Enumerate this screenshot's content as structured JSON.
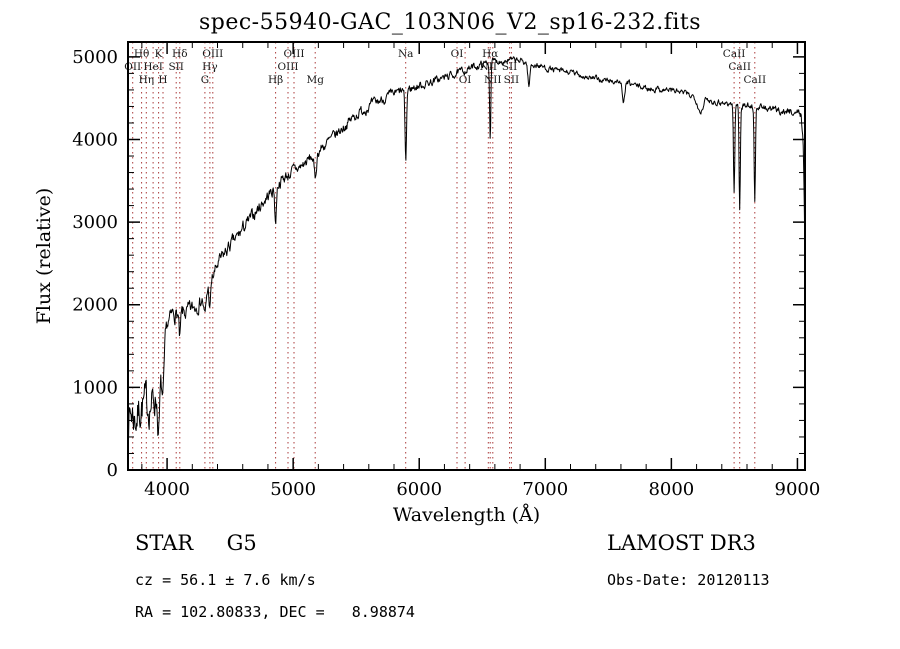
{
  "footer": {
    "class_line": "STAR     G5",
    "survey": "LAMOST DR3",
    "cz_line": "cz = 56.1 ± 7.6 km/s",
    "obs_date_line": "Obs-Date: 20120113",
    "radec_line": "RA = 102.80833, DEC =   8.98874"
  },
  "chart_data": {
    "type": "line",
    "title": "spec-55940-GAC_103N06_V2_sp16-232.fits",
    "xlabel": "Wavelength (Å)",
    "ylabel": "Flux (relative)",
    "xlim": [
      3690,
      9060
    ],
    "ylim": [
      0,
      5180
    ],
    "x_ticks": [
      4000,
      5000,
      6000,
      7000,
      8000,
      9000
    ],
    "y_ticks": [
      0,
      1000,
      2000,
      3000,
      4000,
      5000
    ],
    "x_minor_step": 200,
    "y_minor_step": 200,
    "grid": false,
    "series_color": "#000000",
    "line_marker_color": "#aa3a3a",
    "line_label_color": "#1a1a1a",
    "sample_step": 4,
    "random_seed": 7,
    "continuum": [
      [
        3690,
        650
      ],
      [
        3720,
        700
      ],
      [
        3750,
        620
      ],
      [
        3800,
        800
      ],
      [
        3850,
        780
      ],
      [
        3900,
        850
      ],
      [
        3950,
        1050
      ],
      [
        4000,
        1750
      ],
      [
        4050,
        1900
      ],
      [
        4100,
        1880
      ],
      [
        4150,
        1900
      ],
      [
        4200,
        1950
      ],
      [
        4250,
        2020
      ],
      [
        4300,
        2120
      ],
      [
        4350,
        2280
      ],
      [
        4400,
        2480
      ],
      [
        4450,
        2600
      ],
      [
        4500,
        2720
      ],
      [
        4550,
        2800
      ],
      [
        4600,
        2920
      ],
      [
        4650,
        3010
      ],
      [
        4700,
        3120
      ],
      [
        4750,
        3220
      ],
      [
        4800,
        3320
      ],
      [
        4850,
        3400
      ],
      [
        4900,
        3500
      ],
      [
        4950,
        3560
      ],
      [
        5000,
        3620
      ],
      [
        5050,
        3660
      ],
      [
        5100,
        3720
      ],
      [
        5150,
        3790
      ],
      [
        5200,
        3860
      ],
      [
        5300,
        4000
      ],
      [
        5400,
        4150
      ],
      [
        5500,
        4300
      ],
      [
        5600,
        4400
      ],
      [
        5700,
        4480
      ],
      [
        5800,
        4550
      ],
      [
        5900,
        4600
      ],
      [
        6000,
        4650
      ],
      [
        6100,
        4700
      ],
      [
        6200,
        4750
      ],
      [
        6300,
        4800
      ],
      [
        6400,
        4860
      ],
      [
        6500,
        4910
      ],
      [
        6600,
        4950
      ],
      [
        6700,
        4960
      ],
      [
        6800,
        4950
      ],
      [
        6900,
        4910
      ],
      [
        7000,
        4870
      ],
      [
        7100,
        4830
      ],
      [
        7200,
        4810
      ],
      [
        7300,
        4770
      ],
      [
        7400,
        4730
      ],
      [
        7500,
        4710
      ],
      [
        7600,
        4700
      ],
      [
        7700,
        4660
      ],
      [
        7800,
        4620
      ],
      [
        7900,
        4610
      ],
      [
        8000,
        4600
      ],
      [
        8100,
        4560
      ],
      [
        8200,
        4510
      ],
      [
        8300,
        4470
      ],
      [
        8400,
        4450
      ],
      [
        8500,
        4420
      ],
      [
        8600,
        4410
      ],
      [
        8700,
        4390
      ],
      [
        8800,
        4360
      ],
      [
        8900,
        4340
      ],
      [
        9000,
        4330
      ],
      [
        9030,
        4300
      ],
      [
        9045,
        4000
      ],
      [
        9055,
        3200
      ],
      [
        9060,
        2600
      ]
    ],
    "absorption_features": [
      {
        "center": 3933,
        "depth": 520,
        "sigma": 8
      },
      {
        "center": 3968,
        "depth": 470,
        "sigma": 8
      },
      {
        "center": 4101,
        "depth": 320,
        "sigma": 6
      },
      {
        "center": 4300,
        "depth": 260,
        "sigma": 9
      },
      {
        "center": 4340,
        "depth": 300,
        "sigma": 6
      },
      {
        "center": 4861,
        "depth": 420,
        "sigma": 6
      },
      {
        "center": 5175,
        "depth": 300,
        "sigma": 9
      },
      {
        "center": 5893,
        "depth": 850,
        "sigma": 6
      },
      {
        "center": 6563,
        "depth": 900,
        "sigma": 5
      },
      {
        "center": 6870,
        "depth": 280,
        "sigma": 8
      },
      {
        "center": 7620,
        "depth": 280,
        "sigma": 9
      },
      {
        "center": 8230,
        "depth": 160,
        "sigma": 18
      },
      {
        "center": 8498,
        "depth": 1050,
        "sigma": 5
      },
      {
        "center": 8542,
        "depth": 1250,
        "sigma": 5
      },
      {
        "center": 8662,
        "depth": 1150,
        "sigma": 5
      }
    ],
    "noise_profile": [
      [
        3690,
        320
      ],
      [
        3850,
        300
      ],
      [
        3950,
        220
      ],
      [
        4000,
        130
      ],
      [
        4300,
        110
      ],
      [
        4700,
        95
      ],
      [
        5200,
        85
      ],
      [
        5800,
        70
      ],
      [
        6300,
        55
      ],
      [
        7000,
        45
      ],
      [
        8000,
        45
      ],
      [
        8800,
        50
      ],
      [
        9060,
        60
      ]
    ],
    "spectral_lines": [
      {
        "label": "OII",
        "wavelength": 3727,
        "row": 2
      },
      {
        "label": "Hθ",
        "wavelength": 3798,
        "row": 1
      },
      {
        "label": "Hη",
        "wavelength": 3835,
        "row": 3
      },
      {
        "label": "HeI",
        "wavelength": 3889,
        "row": 2
      },
      {
        "label": "K",
        "wavelength": 3933,
        "row": 1
      },
      {
        "label": "H",
        "wavelength": 3968,
        "row": 3
      },
      {
        "label": "SII",
        "wavelength": 4072,
        "row": 2
      },
      {
        "label": "Hδ",
        "wavelength": 4101,
        "row": 1
      },
      {
        "label": "G",
        "wavelength": 4300,
        "row": 3
      },
      {
        "label": "Hγ",
        "wavelength": 4340,
        "row": 2
      },
      {
        "label": "OIII",
        "wavelength": 4363,
        "row": 1
      },
      {
        "label": "Hβ",
        "wavelength": 4861,
        "row": 3
      },
      {
        "label": "OIII",
        "wavelength": 4959,
        "row": 2
      },
      {
        "label": "OIII",
        "wavelength": 5007,
        "row": 1
      },
      {
        "label": "Mg",
        "wavelength": 5175,
        "row": 3
      },
      {
        "label": "Na",
        "wavelength": 5893,
        "row": 1
      },
      {
        "label": "OI",
        "wavelength": 6300,
        "row": 1
      },
      {
        "label": "OI",
        "wavelength": 6364,
        "row": 3
      },
      {
        "label": "NII",
        "wavelength": 6548,
        "row": 2
      },
      {
        "label": "Hα",
        "wavelength": 6563,
        "row": 1
      },
      {
        "label": "NII",
        "wavelength": 6584,
        "row": 3
      },
      {
        "label": "SII",
        "wavelength": 6717,
        "row": 2
      },
      {
        "label": "SII",
        "wavelength": 6731,
        "row": 3
      },
      {
        "label": "CaII",
        "wavelength": 8498,
        "row": 1
      },
      {
        "label": "CaII",
        "wavelength": 8542,
        "row": 2
      },
      {
        "label": "CaII",
        "wavelength": 8662,
        "row": 3
      }
    ]
  }
}
